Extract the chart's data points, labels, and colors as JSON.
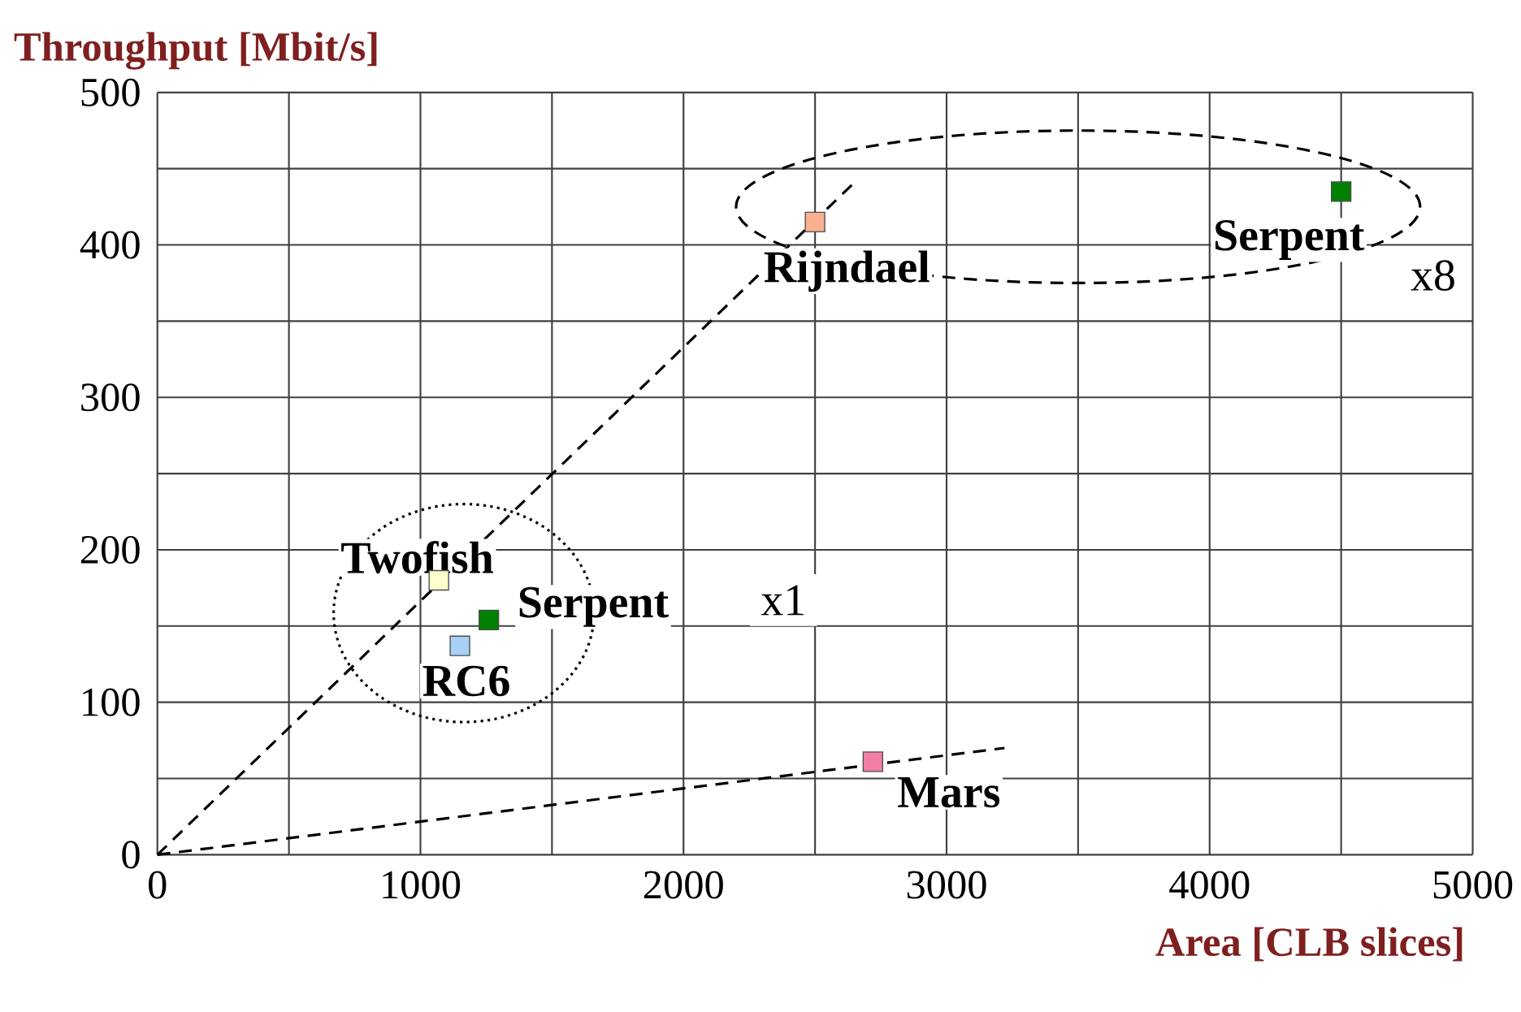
{
  "chart_data": {
    "type": "scatter",
    "ylabel": "Throughput [Mbit/s]",
    "xlabel": "Area [CLB slices]",
    "xlim": [
      0,
      5000
    ],
    "ylim": [
      0,
      500
    ],
    "xticks": [
      0,
      {
        "value": 500,
        "label": null
      },
      1000,
      {
        "value": 1500,
        "label": null
      },
      2000,
      {
        "value": 2500,
        "label": null
      },
      3000,
      {
        "value": 3500,
        "label": null
      },
      4000,
      {
        "value": 4500,
        "label": null
      },
      5000
    ],
    "yticks": [
      0,
      {
        "value": 50,
        "label": null
      },
      100,
      {
        "value": 150,
        "label": null
      },
      200,
      {
        "value": 250,
        "label": null
      },
      300,
      {
        "value": 350,
        "label": null
      },
      400,
      {
        "value": 450,
        "label": null
      },
      500
    ],
    "grid": true,
    "marker": "square",
    "series": [
      {
        "name": "Rijndael",
        "color": "#f9b08e",
        "x": [
          2500
        ],
        "values": [
          415
        ]
      },
      {
        "name": "Serpent",
        "color": "#008000",
        "x": [
          4500
        ],
        "values": [
          435
        ]
      },
      {
        "name": "Twofish",
        "color": "#ffffcc",
        "x": [
          1070
        ],
        "values": [
          180
        ]
      },
      {
        "name": "Serpent",
        "color": "#008000",
        "x": [
          1260
        ],
        "values": [
          154
        ]
      },
      {
        "name": "RC6",
        "color": "#a6d0f5",
        "x": [
          1150
        ],
        "values": [
          137
        ]
      },
      {
        "name": "Mars",
        "color": "#f27fa8",
        "x": [
          2720
        ],
        "values": [
          61
        ]
      },
      {
        "type": "line",
        "color": "#000000",
        "line_style": "dashed",
        "marker": "none",
        "x": [
          0,
          2650
        ],
        "values": [
          0,
          441
        ]
      },
      {
        "type": "line",
        "color": "#000000",
        "line_style": "dashed",
        "marker": "none",
        "x": [
          0,
          3220
        ],
        "values": [
          0,
          70
        ]
      }
    ],
    "annotations": [
      {
        "text": "x8",
        "x": 4850,
        "y": 380
      },
      {
        "text": "x1",
        "x": 2380,
        "y": 167
      }
    ]
  }
}
